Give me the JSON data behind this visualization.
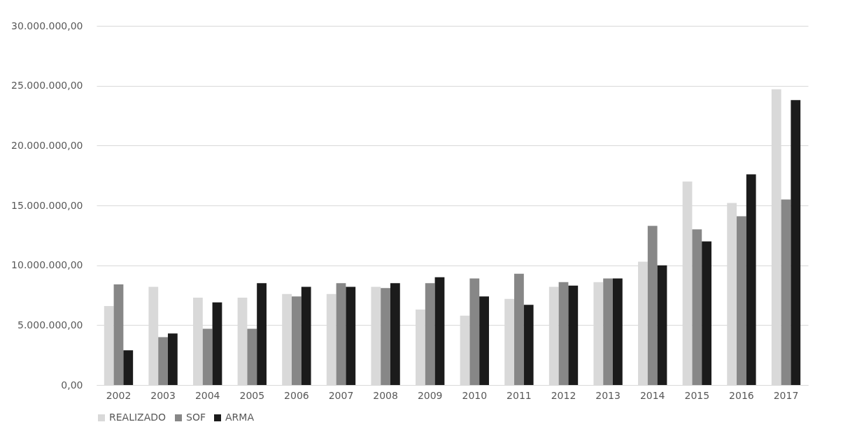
{
  "chart_data": {
    "type": "bar",
    "categories": [
      "2002",
      "2003",
      "2004",
      "2005",
      "2006",
      "2007",
      "2008",
      "2009",
      "2010",
      "2011",
      "2012",
      "2013",
      "2014",
      "2015",
      "2016",
      "2017"
    ],
    "series": [
      {
        "name": "REALIZADO",
        "color": "#d9d9d9",
        "values": [
          6600000,
          8200000,
          7300000,
          7300000,
          7600000,
          7600000,
          8200000,
          6300000,
          5800000,
          7200000,
          8200000,
          8600000,
          10300000,
          17000000,
          15200000,
          24700000
        ]
      },
      {
        "name": "SOF",
        "color": "#878787",
        "values": [
          8400000,
          4000000,
          4700000,
          4700000,
          7400000,
          8500000,
          8100000,
          8500000,
          8900000,
          9300000,
          8600000,
          8900000,
          13300000,
          13000000,
          14100000,
          15500000
        ]
      },
      {
        "name": "ARMA",
        "color": "#1b1b1b",
        "values": [
          2900000,
          4300000,
          6900000,
          8500000,
          8200000,
          8200000,
          8500000,
          9000000,
          7400000,
          6700000,
          8300000,
          8900000,
          10000000,
          12000000,
          17600000,
          23800000
        ]
      }
    ],
    "ylim": [
      0,
      30000000
    ],
    "yticks": [
      {
        "value": 0,
        "label": "0,00"
      },
      {
        "value": 5000000,
        "label": "5.000.000,00"
      },
      {
        "value": 10000000,
        "label": "10.000.000,00"
      },
      {
        "value": 15000000,
        "label": "15.000.000,00"
      },
      {
        "value": 20000000,
        "label": "20.000.000,00"
      },
      {
        "value": 25000000,
        "label": "25.000.000,00"
      },
      {
        "value": 30000000,
        "label": "30.000.000,00"
      }
    ],
    "grid": "y",
    "legend": "bottom"
  }
}
